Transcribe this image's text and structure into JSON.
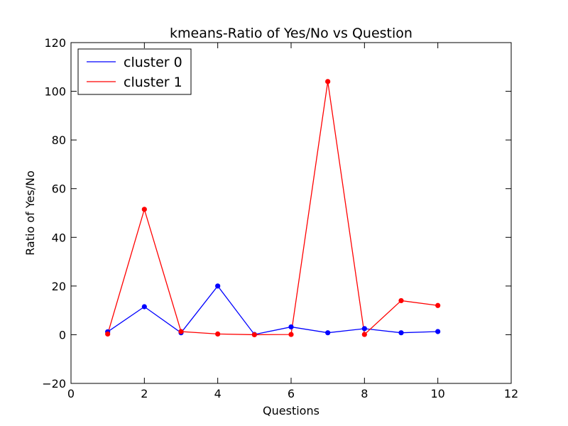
{
  "chart_data": {
    "type": "line",
    "title": "kmeans-Ratio of Yes/No vs Question",
    "xlabel": "Questions",
    "ylabel": "Ratio of Yes/No",
    "xlim": [
      0,
      12
    ],
    "ylim": [
      -20,
      120
    ],
    "xticks": [
      0,
      2,
      4,
      6,
      8,
      10,
      12
    ],
    "yticks": [
      -20,
      0,
      20,
      40,
      60,
      80,
      100,
      120
    ],
    "grid": false,
    "legend_position": "top-left",
    "x": [
      1,
      2,
      3,
      4,
      5,
      6,
      7,
      8,
      9,
      10
    ],
    "series": [
      {
        "name": "cluster 0",
        "color": "#0000ff",
        "values": [
          1.2,
          11.5,
          0.8,
          20.0,
          0.1,
          3.2,
          0.8,
          2.5,
          0.8,
          1.3
        ]
      },
      {
        "name": "cluster 1",
        "color": "#ff0000",
        "values": [
          0.3,
          51.5,
          1.3,
          0.3,
          0.0,
          0.1,
          104.0,
          0.1,
          14.0,
          12.0
        ]
      }
    ]
  }
}
